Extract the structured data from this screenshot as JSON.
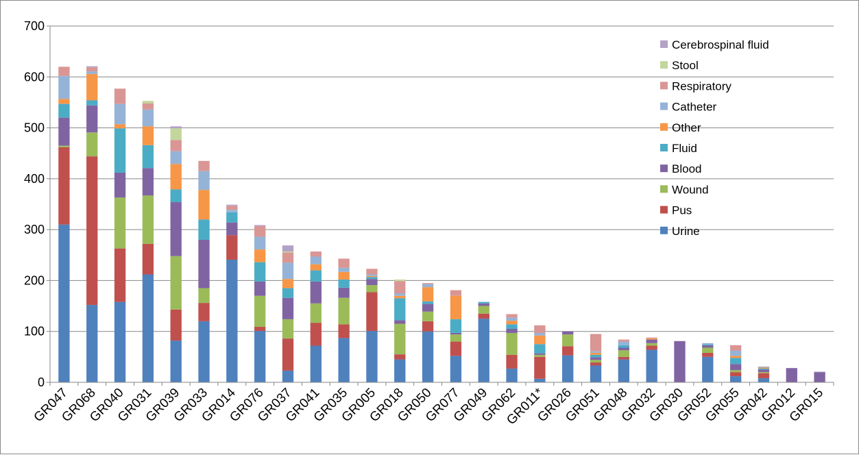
{
  "chart_data": {
    "type": "bar",
    "stacked": true,
    "title": "",
    "xlabel": "",
    "ylabel": "",
    "ylim": [
      0,
      700
    ],
    "yticks": [
      0,
      100,
      200,
      300,
      400,
      500,
      600,
      700
    ],
    "grid": true,
    "legend_position": "top-right",
    "categories": [
      "GR047",
      "GR068",
      "GR040",
      "GR031",
      "GR039",
      "GR033",
      "GR014",
      "GR076",
      "GR037",
      "GR041",
      "GR035",
      "GR005",
      "GR018",
      "GR050",
      "GR077",
      "GR049",
      "GR062",
      "GR011*",
      "GR026",
      "GR051",
      "GR048",
      "GR032",
      "GR030",
      "GR052",
      "GR055",
      "GR042",
      "GR012",
      "GR015"
    ],
    "series": [
      {
        "name": "Urine",
        "color": "#4F81BD",
        "values": [
          310,
          152,
          158,
          212,
          82,
          120,
          241,
          101,
          23,
          72,
          87,
          101,
          45,
          100,
          52,
          125,
          27,
          7,
          53,
          33,
          45,
          64,
          0,
          50,
          12,
          8,
          0,
          0
        ]
      },
      {
        "name": "Pus",
        "color": "#C0504D",
        "values": [
          152,
          292,
          105,
          60,
          61,
          36,
          48,
          8,
          63,
          45,
          27,
          76,
          10,
          20,
          28,
          10,
          27,
          43,
          18,
          6,
          5,
          8,
          0,
          8,
          8,
          10,
          0,
          0
        ]
      },
      {
        "name": "Wound",
        "color": "#9BBB59",
        "values": [
          3,
          47,
          100,
          95,
          105,
          29,
          0,
          61,
          38,
          38,
          52,
          14,
          60,
          19,
          14,
          15,
          43,
          4,
          23,
          5,
          13,
          5,
          0,
          10,
          4,
          2,
          0,
          0
        ]
      },
      {
        "name": "Blood",
        "color": "#8064A2",
        "values": [
          55,
          53,
          49,
          54,
          106,
          95,
          25,
          28,
          42,
          43,
          20,
          12,
          7,
          15,
          3,
          5,
          8,
          3,
          6,
          5,
          5,
          7,
          81,
          5,
          12,
          5,
          28,
          20
        ]
      },
      {
        "name": "Fluid",
        "color": "#4BACC6",
        "values": [
          27,
          10,
          87,
          45,
          25,
          40,
          20,
          38,
          19,
          22,
          16,
          4,
          43,
          5,
          27,
          3,
          9,
          18,
          0,
          5,
          5,
          0,
          0,
          2,
          12,
          2,
          0,
          0
        ]
      },
      {
        "name": "Other",
        "color": "#F79646",
        "values": [
          10,
          52,
          8,
          37,
          50,
          58,
          0,
          25,
          18,
          12,
          15,
          2,
          5,
          28,
          46,
          0,
          7,
          17,
          0,
          4,
          0,
          2,
          0,
          0,
          4,
          2,
          0,
          0
        ]
      },
      {
        "name": "Catheter",
        "color": "#95B3D7",
        "values": [
          45,
          5,
          40,
          33,
          25,
          37,
          5,
          25,
          32,
          15,
          8,
          3,
          5,
          6,
          0,
          0,
          6,
          5,
          0,
          3,
          7,
          0,
          0,
          2,
          10,
          2,
          0,
          0
        ]
      },
      {
        "name": "Respiratory",
        "color": "#D99694",
        "values": [
          18,
          8,
          30,
          12,
          22,
          20,
          8,
          21,
          20,
          10,
          18,
          11,
          24,
          2,
          11,
          0,
          7,
          15,
          0,
          34,
          4,
          2,
          0,
          0,
          11,
          0,
          0,
          0
        ]
      },
      {
        "name": "Stool",
        "color": "#C3D69B",
        "values": [
          0,
          0,
          0,
          5,
          23,
          0,
          0,
          0,
          2,
          0,
          0,
          0,
          3,
          0,
          0,
          0,
          0,
          0,
          0,
          0,
          0,
          0,
          0,
          0,
          0,
          0,
          0,
          0
        ]
      },
      {
        "name": "Cerebrospinal fluid",
        "color": "#B3A2C7",
        "values": [
          0,
          2,
          0,
          0,
          4,
          0,
          2,
          2,
          12,
          0,
          0,
          0,
          0,
          0,
          0,
          0,
          0,
          0,
          0,
          0,
          0,
          0,
          0,
          0,
          0,
          0,
          0,
          1
        ]
      }
    ]
  }
}
